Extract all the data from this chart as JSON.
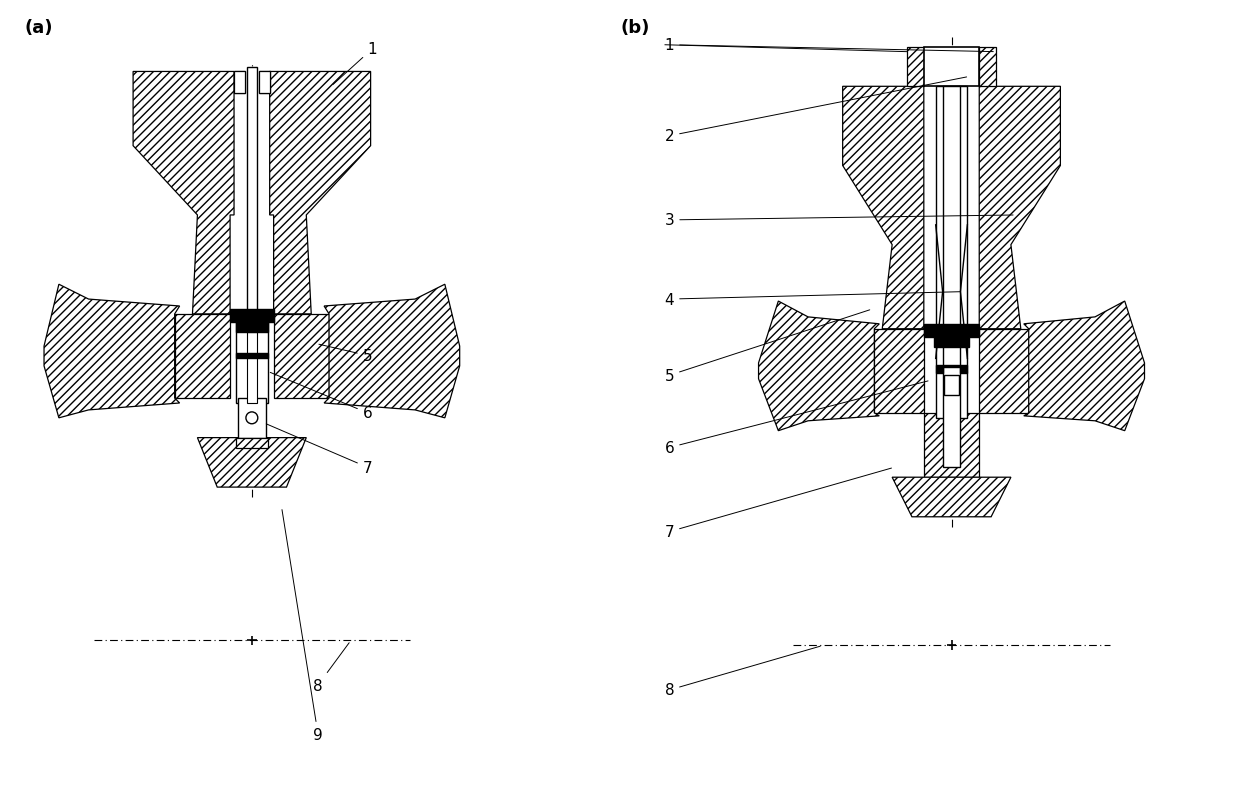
{
  "fig_width": 12.4,
  "fig_height": 8.04,
  "bg_color": "#ffffff",
  "line_color": "#000000",
  "label_a": "(a)",
  "label_b": "(b)"
}
